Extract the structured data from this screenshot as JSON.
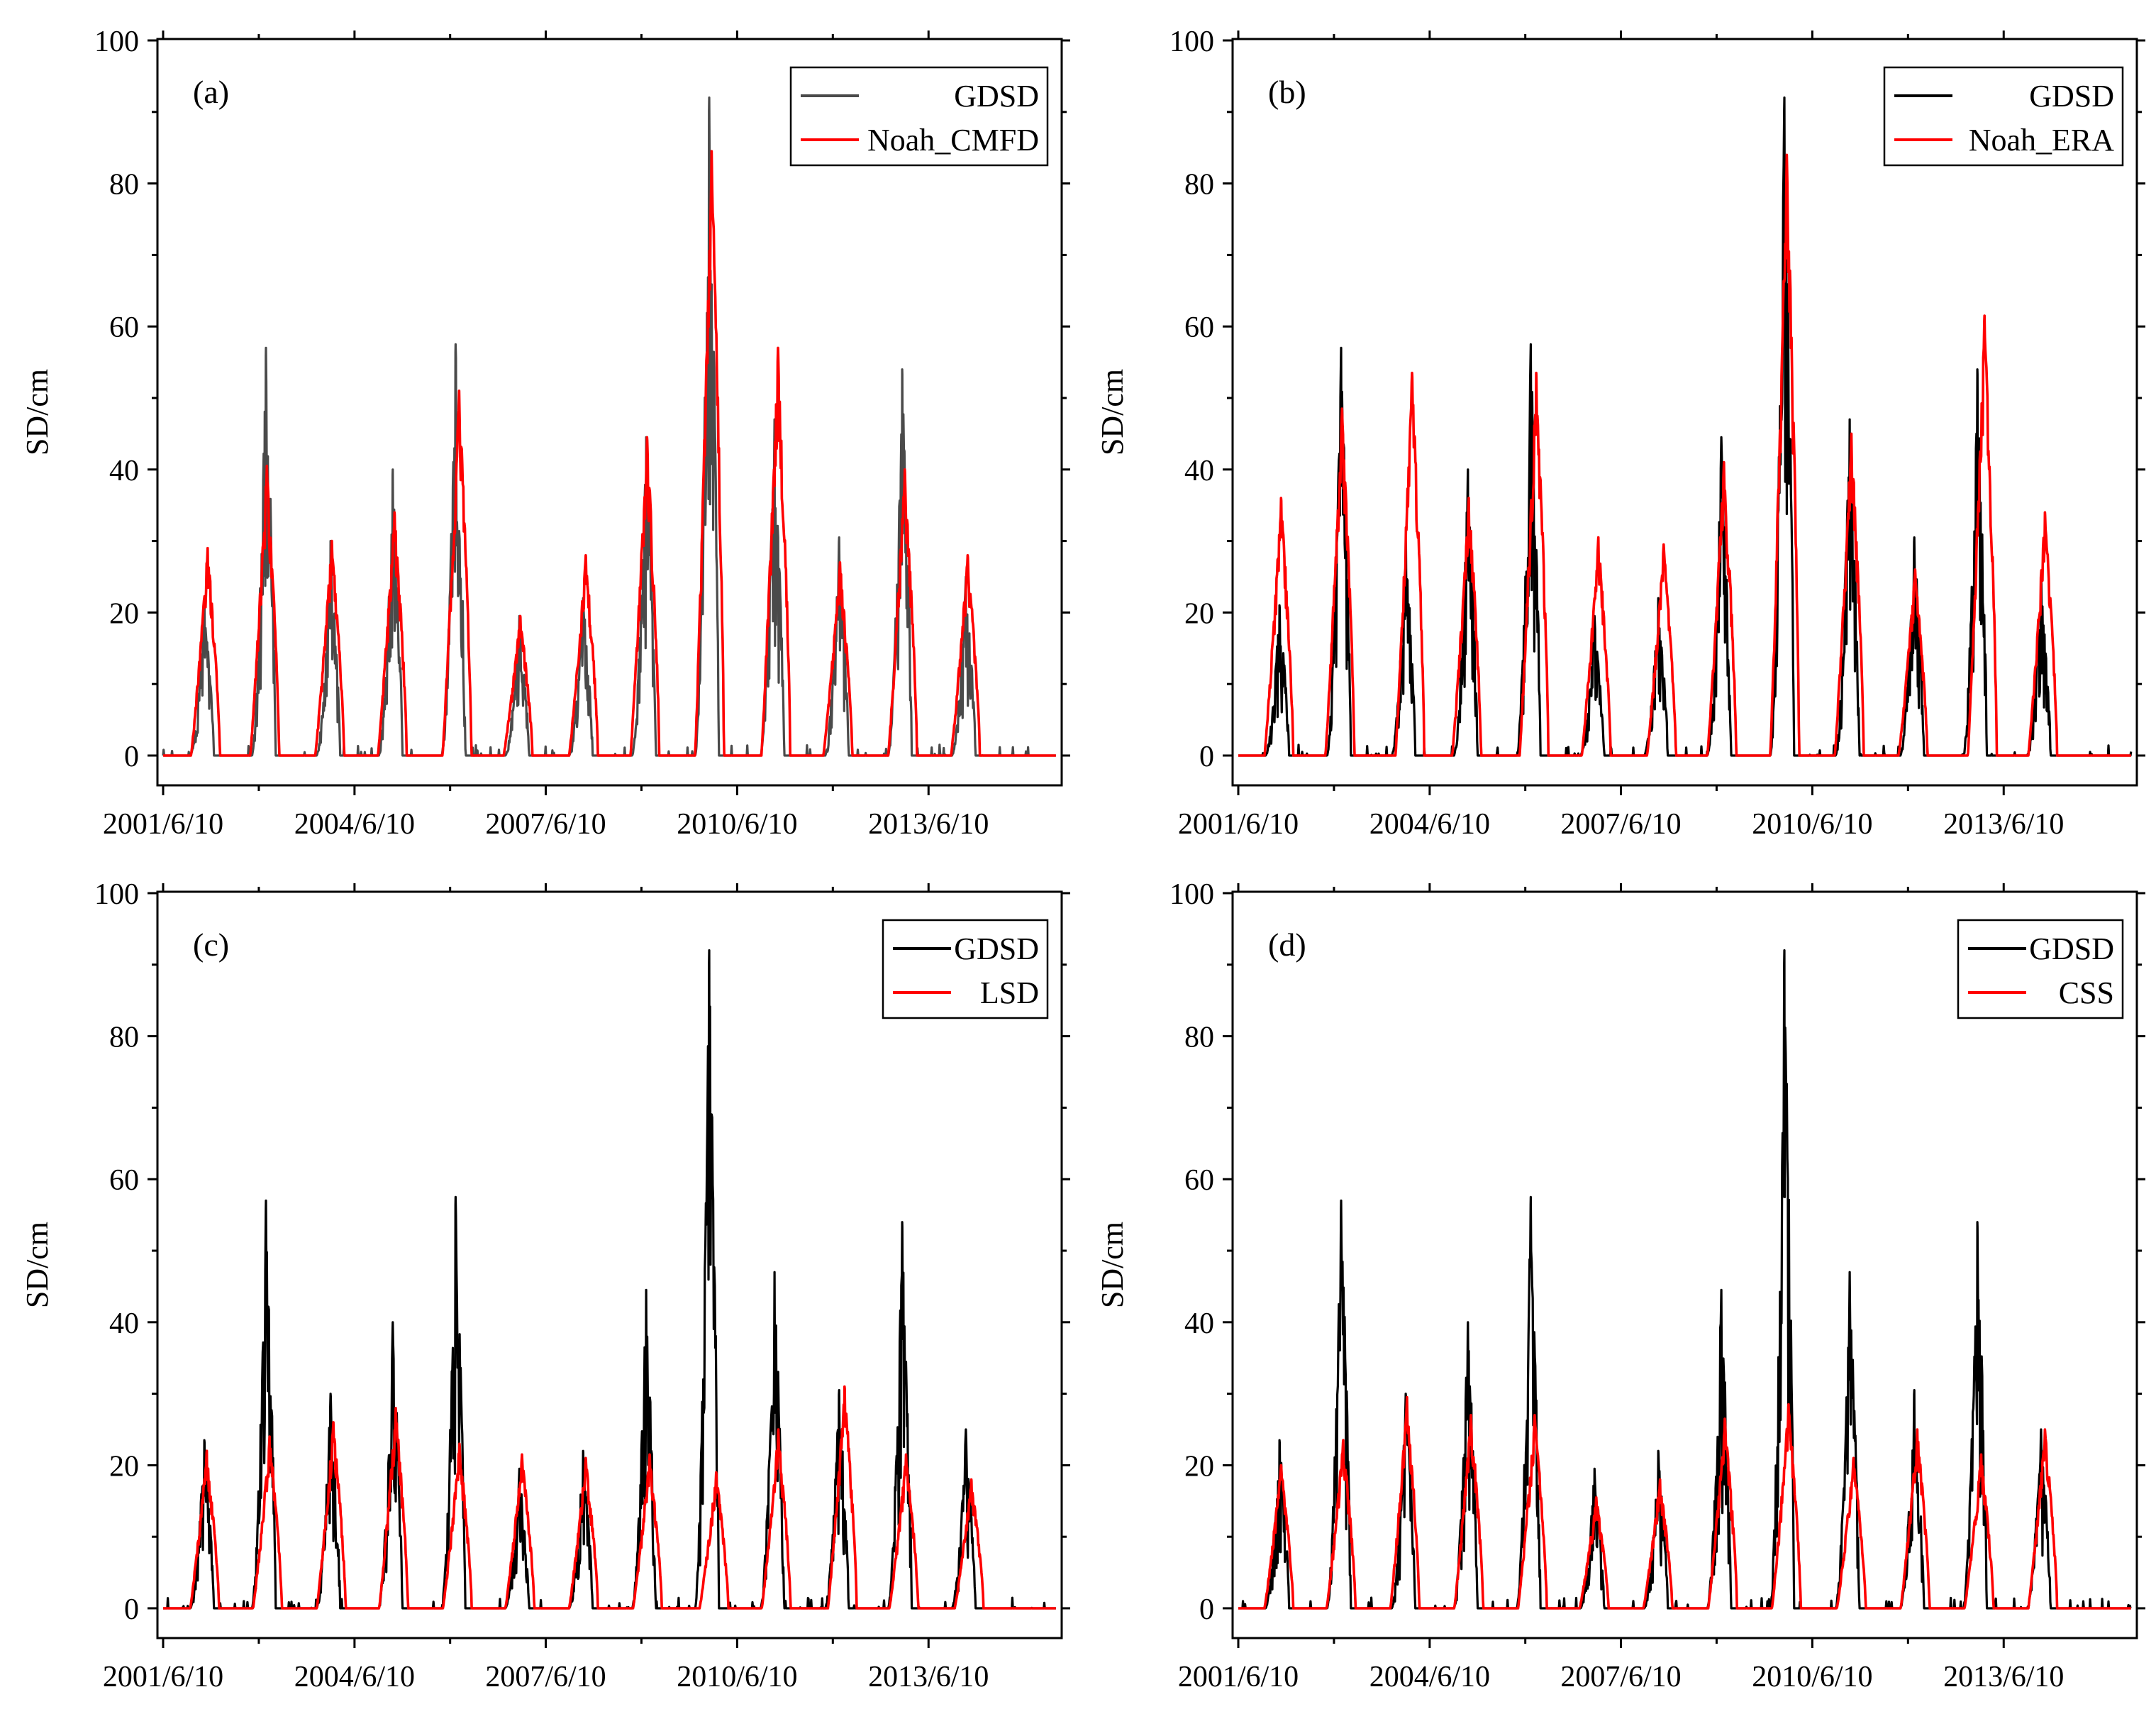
{
  "figure": {
    "colors": {
      "gdsd_a": "#4a4a4a",
      "gdsd": "#000000",
      "model": "#ff0000",
      "frame": "#000000"
    }
  },
  "chart_data": [
    {
      "type": "line",
      "panel": "(a)",
      "xlabel": "",
      "ylabel": "SD/cm",
      "ylim": [
        0,
        100
      ],
      "yticks": [
        "0",
        "20",
        "40",
        "60",
        "80",
        "100"
      ],
      "xlim": [
        "2001/6/10",
        "2015/6/10"
      ],
      "xticks": [
        "2001/6/10",
        "2004/6/10",
        "2007/6/10",
        "2010/6/10",
        "2013/6/10"
      ],
      "legend_position": "top-right",
      "series": [
        {
          "name": "GDSD",
          "color": "#4a4a4a",
          "peaks": [
            [
              "2002/2/01",
              21
            ],
            [
              "2003/1/20",
              57
            ],
            [
              "2004/1/25",
              30
            ],
            [
              "2005/1/15",
              40
            ],
            [
              "2006/1/10",
              57.5
            ],
            [
              "2007/1/10",
              19.5
            ],
            [
              "2008/1/10",
              22
            ],
            [
              "2009/1/05",
              44.5
            ],
            [
              "2010/1/01",
              92
            ],
            [
              "2011/1/10",
              47
            ],
            [
              "2012/1/15",
              30.5
            ],
            [
              "2013/1/10",
              54
            ],
            [
              "2014/1/10",
              25
            ]
          ]
        },
        {
          "name": "Noah_CMFD",
          "color": "#ff0000",
          "peaks": [
            [
              "2002/2/20",
              29
            ],
            [
              "2003/1/25",
              40.5
            ],
            [
              "2004/2/01",
              30
            ],
            [
              "2005/1/25",
              34
            ],
            [
              "2006/1/30",
              51
            ],
            [
              "2007/1/15",
              19.5
            ],
            [
              "2008/1/25",
              28
            ],
            [
              "2009/1/10",
              44.5
            ],
            [
              "2010/1/15",
              84.5
            ],
            [
              "2011/1/30",
              57
            ],
            [
              "2012/1/20",
              27
            ],
            [
              "2013/1/25",
              40
            ],
            [
              "2014/1/20",
              28
            ]
          ]
        }
      ]
    },
    {
      "type": "line",
      "panel": "(b)",
      "xlabel": "",
      "ylabel": "SD/cm",
      "ylim": [
        0,
        100
      ],
      "yticks": [
        "0",
        "20",
        "40",
        "60",
        "80",
        "100"
      ],
      "xlim": [
        "2001/6/10",
        "2015/6/10"
      ],
      "xticks": [
        "2001/6/10",
        "2004/6/10",
        "2007/6/10",
        "2010/6/10",
        "2013/6/10"
      ],
      "legend_position": "top-right",
      "series": [
        {
          "name": "GDSD",
          "color": "#000000",
          "peaks": [
            [
              "2002/2/01",
              21
            ],
            [
              "2003/1/20",
              57
            ],
            [
              "2004/1/25",
              30
            ],
            [
              "2005/1/15",
              40
            ],
            [
              "2006/1/10",
              57.5
            ],
            [
              "2007/1/10",
              19.5
            ],
            [
              "2008/1/10",
              22
            ],
            [
              "2009/1/05",
              44.5
            ],
            [
              "2010/1/01",
              92
            ],
            [
              "2011/1/10",
              47
            ],
            [
              "2012/1/15",
              30.5
            ],
            [
              "2013/1/10",
              54
            ],
            [
              "2014/1/10",
              25
            ]
          ]
        },
        {
          "name": "Noah_ERA",
          "color": "#ff0000",
          "peaks": [
            [
              "2002/2/10",
              36
            ],
            [
              "2003/1/25",
              48.5
            ],
            [
              "2004/3/01",
              53.5
            ],
            [
              "2005/1/20",
              36
            ],
            [
              "2006/2/10",
              53.5
            ],
            [
              "2007/2/01",
              30.5
            ],
            [
              "2008/2/10",
              29.5
            ],
            [
              "2009/1/20",
              41
            ],
            [
              "2010/1/15",
              84
            ],
            [
              "2011/1/20",
              45
            ],
            [
              "2012/1/20",
              26
            ],
            [
              "2013/2/20",
              61.5
            ],
            [
              "2014/2/01",
              34
            ]
          ]
        }
      ]
    },
    {
      "type": "line",
      "panel": "(c)",
      "xlabel": "",
      "ylabel": "SD/cm",
      "ylim": [
        0,
        100
      ],
      "yticks": [
        "0",
        "20",
        "40",
        "60",
        "80",
        "100"
      ],
      "xlim": [
        "2001/6/10",
        "2015/6/10"
      ],
      "xticks": [
        "2001/6/10",
        "2004/6/10",
        "2007/6/10",
        "2010/6/10",
        "2013/6/10"
      ],
      "legend_position": "top-right",
      "series": [
        {
          "name": "GDSD",
          "color": "#000000",
          "peaks": [
            [
              "2002/2/01",
              23.5
            ],
            [
              "2003/1/20",
              57
            ],
            [
              "2004/1/25",
              30
            ],
            [
              "2005/1/15",
              40
            ],
            [
              "2006/1/10",
              57.5
            ],
            [
              "2007/1/10",
              19.5
            ],
            [
              "2008/1/10",
              22
            ],
            [
              "2009/1/05",
              44.5
            ],
            [
              "2010/1/01",
              92
            ],
            [
              "2011/1/10",
              47
            ],
            [
              "2012/1/15",
              30.5
            ],
            [
              "2013/1/10",
              54
            ],
            [
              "2014/1/10",
              25
            ]
          ]
        },
        {
          "name": "LSD",
          "color": "#ff0000",
          "peaks": [
            [
              "2002/2/15",
              22
            ],
            [
              "2003/2/10",
              24
            ],
            [
              "2004/2/10",
              26
            ],
            [
              "2005/2/01",
              28
            ],
            [
              "2006/2/01",
              23
            ],
            [
              "2007/1/25",
              21.5
            ],
            [
              "2008/1/25",
              21
            ],
            [
              "2009/1/25",
              21.5
            ],
            [
              "2010/2/10",
              19
            ],
            [
              "2011/2/01",
              25
            ],
            [
              "2012/2/15",
              31
            ],
            [
              "2013/2/01",
              21.5
            ],
            [
              "2014/2/10",
              18
            ]
          ]
        }
      ]
    },
    {
      "type": "line",
      "panel": "(d)",
      "xlabel": "",
      "ylabel": "SD/cm",
      "ylim": [
        0,
        100
      ],
      "yticks": [
        "0",
        "20",
        "40",
        "60",
        "80",
        "100"
      ],
      "xlim": [
        "2001/6/10",
        "2015/6/10"
      ],
      "xticks": [
        "2001/6/10",
        "2004/6/10",
        "2007/6/10",
        "2010/6/10",
        "2013/6/10"
      ],
      "legend_position": "top-right",
      "series": [
        {
          "name": "GDSD",
          "color": "#000000",
          "peaks": [
            [
              "2002/2/01",
              23.5
            ],
            [
              "2003/1/20",
              57
            ],
            [
              "2004/1/25",
              30
            ],
            [
              "2005/1/15",
              40
            ],
            [
              "2006/1/10",
              57.5
            ],
            [
              "2007/1/10",
              19.5
            ],
            [
              "2008/1/10",
              22
            ],
            [
              "2009/1/05",
              44.5
            ],
            [
              "2010/1/01",
              92
            ],
            [
              "2011/1/10",
              47
            ],
            [
              "2012/1/15",
              30.5
            ],
            [
              "2013/1/10",
              54
            ],
            [
              "2014/1/10",
              25
            ]
          ]
        },
        {
          "name": "CSS",
          "color": "#ff0000",
          "peaks": [
            [
              "2002/2/10",
              20
            ],
            [
              "2003/2/01",
              23.5
            ],
            [
              "2004/2/01",
              29.5
            ],
            [
              "2005/2/01",
              27
            ],
            [
              "2006/2/01",
              27
            ],
            [
              "2007/1/20",
              15.5
            ],
            [
              "2008/1/20",
              18
            ],
            [
              "2009/1/25",
              26.5
            ],
            [
              "2010/1/25",
              28.5
            ],
            [
              "2011/2/01",
              21
            ],
            [
              "2012/2/01",
              25
            ],
            [
              "2013/2/01",
              21.5
            ],
            [
              "2014/2/01",
              25
            ]
          ]
        }
      ]
    }
  ]
}
